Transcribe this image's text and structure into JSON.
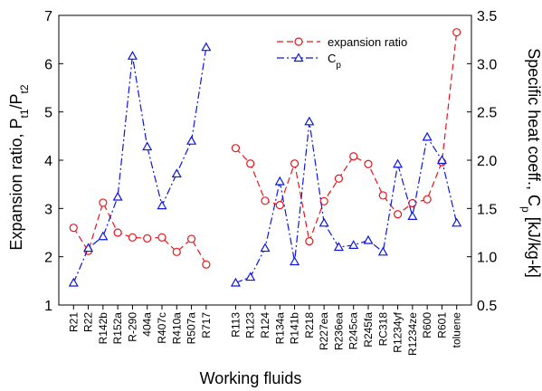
{
  "chart_data": {
    "type": "line",
    "xlabel": "Working fluids",
    "categories": [
      "R21",
      "R22",
      "R142b",
      "R152a",
      "R-290",
      "404a",
      "R407c",
      "R410a",
      "R507a",
      "R717",
      "",
      "R113",
      "R123",
      "R124",
      "R134a",
      "R141b",
      "R218",
      "R227ea",
      "R236ea",
      "R245ca",
      "R245fa",
      "RC318",
      "R1234yf",
      "R1234ze",
      "R600",
      "R601",
      "toluene"
    ],
    "y_left": {
      "range": [
        1,
        7
      ],
      "ticks": [
        1,
        2,
        3,
        4,
        5,
        6,
        7
      ],
      "label_main": "Expansion ratio, P",
      "label_sub1": "t1",
      "label_mid": "/P",
      "label_sub2": "t2"
    },
    "y_right": {
      "range": [
        0.5,
        3.5
      ],
      "ticks": [
        "0.5",
        "1.0",
        "1.5",
        "2.0",
        "2.5",
        "3.0",
        "3.5"
      ],
      "label_main": "Specific heat coeff., C",
      "label_sub": "p",
      "label_unit": " [kJ/kg-k]"
    },
    "legend": {
      "position": "top-right",
      "entries": [
        {
          "label": "expansion ratio"
        },
        {
          "label_main": "C",
          "label_sub": "p"
        }
      ]
    },
    "series": [
      {
        "axis": "left",
        "color": "#e8141b",
        "marker": "circle",
        "dash": "dash",
        "segments": [
          [
            2.6,
            2.12,
            3.12,
            2.5,
            2.4,
            2.38,
            2.4,
            2.1,
            2.37,
            1.84
          ],
          [
            null,
            4.25,
            3.93,
            3.16,
            3.07,
            3.93,
            2.32,
            3.15,
            3.62,
            4.08,
            3.92,
            3.27,
            2.88,
            3.11,
            3.19,
            3.96,
            6.65
          ]
        ]
      },
      {
        "axis": "right",
        "color": "#0c17e0",
        "marker": "triangle",
        "dash": "dashdot",
        "segments": [
          [
            0.73,
            1.09,
            1.21,
            1.62,
            3.08,
            2.14,
            1.53,
            1.86,
            2.2,
            3.17
          ],
          [
            null,
            0.73,
            0.79,
            1.09,
            1.78,
            0.95,
            2.4,
            1.35,
            1.1,
            1.12,
            1.17,
            1.05,
            1.96,
            1.42,
            2.24,
            2.0,
            1.35
          ]
        ]
      }
    ]
  }
}
